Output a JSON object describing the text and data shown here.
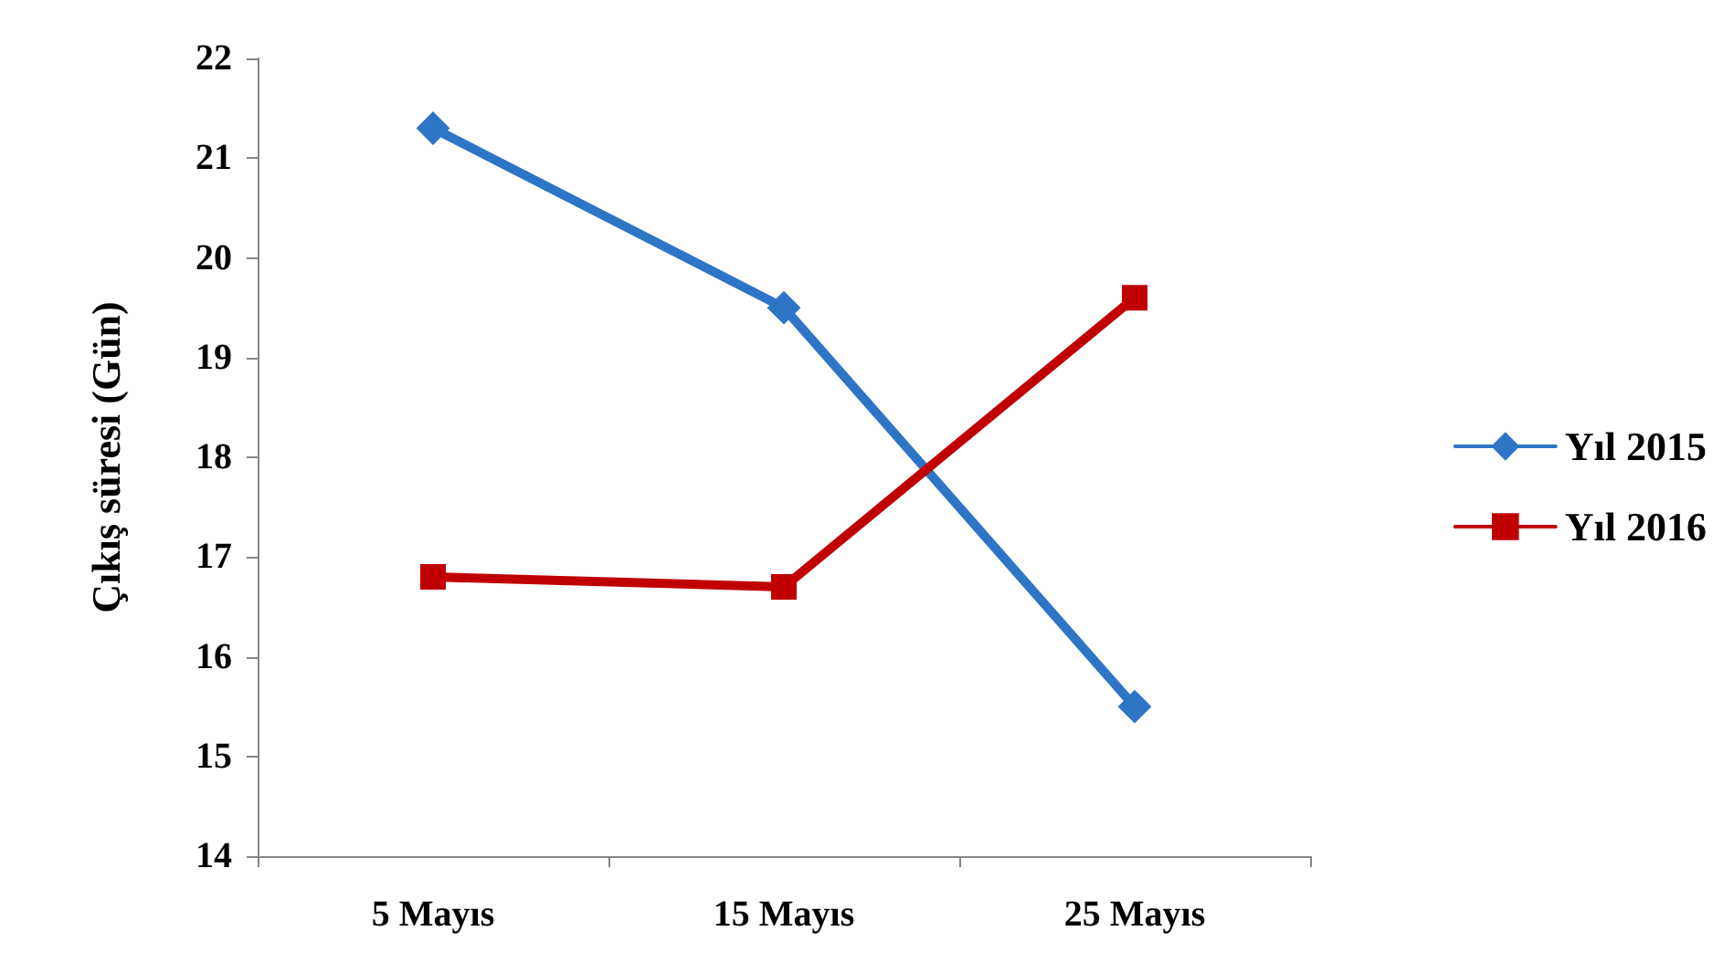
{
  "chart_data": {
    "type": "line",
    "ylabel": "Çıkış süresi (Gün)",
    "categories": [
      "5 Mayıs",
      "15 Mayıs",
      "25 Mayıs"
    ],
    "series": [
      {
        "name": "Yıl 2015",
        "color": "#2e75c6",
        "marker": "diamond",
        "values": [
          21.3,
          19.5,
          15.5
        ]
      },
      {
        "name": "Yıl 2016",
        "color": "#c00000",
        "marker": "square",
        "values": [
          16.8,
          16.7,
          19.6
        ]
      }
    ],
    "ylim": [
      14,
      22
    ],
    "yticks": [
      14,
      15,
      16,
      17,
      18,
      19,
      20,
      21,
      22
    ],
    "grid": false,
    "legend": "right",
    "line_style": "solid"
  }
}
